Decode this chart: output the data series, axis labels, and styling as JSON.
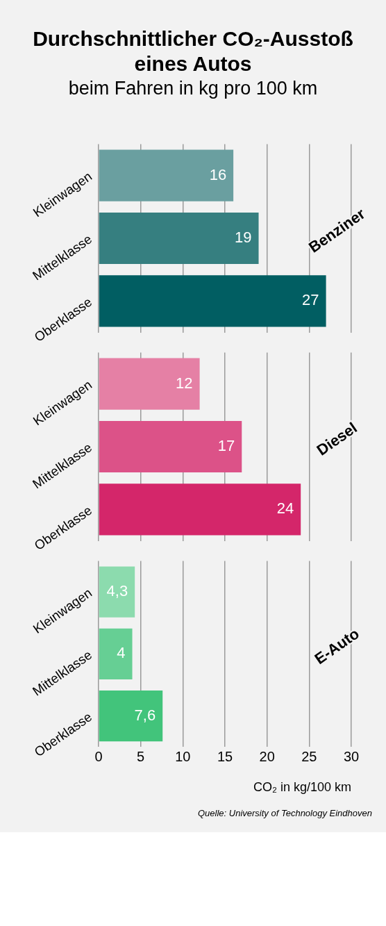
{
  "chart_data": [
    {
      "type": "bar",
      "title": "Durchschnittlicher CO₂-Ausstoß eines Autos",
      "subtitle": "beim Fahren in kg pro 100 km",
      "orientation": "horizontal",
      "categories": [
        "Kleinwagen",
        "Mittelklasse",
        "Oberklasse"
      ],
      "values": [
        16,
        19,
        27
      ],
      "colors": [
        "#6a9fa0",
        "#367f80",
        "#015e62"
      ],
      "value_labels": [
        "16",
        "19",
        "27"
      ],
      "xlim": [
        0,
        30
      ],
      "xticks": [
        0,
        5,
        10,
        15,
        20,
        25,
        30
      ],
      "grid": "x",
      "tick_labels": "y",
      "annotations": [
        "Benziner"
      ]
    },
    {
      "type": "bar",
      "orientation": "horizontal",
      "categories": [
        "Kleinwagen",
        "Mittelklasse",
        "Oberklasse"
      ],
      "values": [
        12,
        17,
        24
      ],
      "colors": [
        "#e580a5",
        "#dc5288",
        "#d4266a"
      ],
      "value_labels": [
        "12",
        "17",
        "24"
      ],
      "xlim": [
        0,
        30
      ],
      "xticks": [
        0,
        5,
        10,
        15,
        20,
        25,
        30
      ],
      "grid": "x",
      "tick_labels": "y",
      "annotations": [
        "Diesel"
      ]
    },
    {
      "type": "bar",
      "orientation": "horizontal",
      "categories": [
        "Kleinwagen",
        "Mittelklasse",
        "Oberklasse"
      ],
      "values": [
        4.3,
        4,
        7.6
      ],
      "colors": [
        "#8cdbae",
        "#66cf94",
        "#42c47b"
      ],
      "value_labels": [
        "4,3",
        "4",
        "7,6"
      ],
      "xlim": [
        0,
        30
      ],
      "xticks": [
        0,
        5,
        10,
        15,
        20,
        25,
        30
      ],
      "grid": "x",
      "xlabel": "CO₂ in kg/100 km",
      "annotations": [
        "E-Auto",
        "Quelle: University of Technology Eindhoven"
      ]
    }
  ]
}
